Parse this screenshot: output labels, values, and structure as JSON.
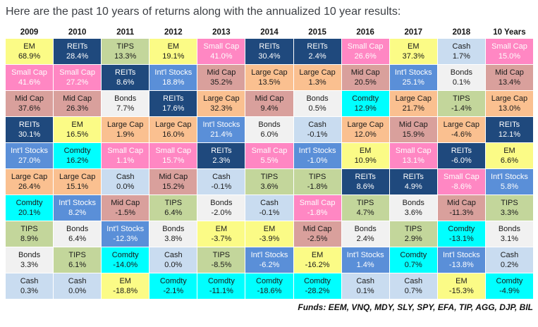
{
  "title": "Here are the past 10 years of returns along with the annualized 10 year results:",
  "footer_note": "Funds: EEM, VNQ, MDY, SLY, SPY, EFA, TIP, AGG, DJP, BIL",
  "asset_classes": {
    "EM": {
      "bg": "#FBFB86",
      "fg": "#1b1b1b"
    },
    "Small Cap": {
      "bg": "#FF87C3",
      "fg": "#fdfdfd"
    },
    "Mid Cap": {
      "bg": "#D9A09C",
      "fg": "#1b1b1b"
    },
    "REITs": {
      "bg": "#1F497D",
      "fg": "#fdfdfd"
    },
    "Int'l Stocks": {
      "bg": "#5A8FD8",
      "fg": "#fdfdfd"
    },
    "Large Cap": {
      "bg": "#FAC090",
      "fg": "#1b1b1b"
    },
    "Comdty": {
      "bg": "#00FFFF",
      "fg": "#1b1b1b"
    },
    "TIPS": {
      "bg": "#C3D69B",
      "fg": "#1b1b1b"
    },
    "Bonds": {
      "bg": "#F1F1F1",
      "fg": "#1b1b1b"
    },
    "Cash": {
      "bg": "#C9DCF0",
      "fg": "#1b1b1b"
    }
  },
  "chart_data": {
    "type": "table",
    "title": "Past 10 years of asset class returns with annualized 10 year results",
    "columns": [
      "2009",
      "2010",
      "2011",
      "2012",
      "2013",
      "2014",
      "2015",
      "2016",
      "2017",
      "2018",
      "10 Years"
    ],
    "grid": [
      [
        {
          "asset": "EM",
          "value": "68.9%"
        },
        {
          "asset": "Small Cap",
          "value": "41.6%"
        },
        {
          "asset": "Mid Cap",
          "value": "37.6%"
        },
        {
          "asset": "REITs",
          "value": "30.1%"
        },
        {
          "asset": "Int'l Stocks",
          "value": "27.0%"
        },
        {
          "asset": "Large Cap",
          "value": "26.4%"
        },
        {
          "asset": "Comdty",
          "value": "20.1%"
        },
        {
          "asset": "TIPS",
          "value": "8.9%"
        },
        {
          "asset": "Bonds",
          "value": "3.3%"
        },
        {
          "asset": "Cash",
          "value": "0.3%"
        }
      ],
      [
        {
          "asset": "REITs",
          "value": "28.4%"
        },
        {
          "asset": "Small Cap",
          "value": "27.2%"
        },
        {
          "asset": "Mid Cap",
          "value": "26.3%"
        },
        {
          "asset": "EM",
          "value": "16.5%"
        },
        {
          "asset": "Comdty",
          "value": "16.2%"
        },
        {
          "asset": "Large Cap",
          "value": "15.1%"
        },
        {
          "asset": "Int'l Stocks",
          "value": "8.2%"
        },
        {
          "asset": "Bonds",
          "value": "6.4%"
        },
        {
          "asset": "TIPS",
          "value": "6.1%"
        },
        {
          "asset": "Cash",
          "value": "0.0%"
        }
      ],
      [
        {
          "asset": "TIPS",
          "value": "13.3%"
        },
        {
          "asset": "REITs",
          "value": "8.6%"
        },
        {
          "asset": "Bonds",
          "value": "7.7%"
        },
        {
          "asset": "Large Cap",
          "value": "1.9%"
        },
        {
          "asset": "Small Cap",
          "value": "1.1%"
        },
        {
          "asset": "Cash",
          "value": "0.0%"
        },
        {
          "asset": "Mid Cap",
          "value": "-1.5%"
        },
        {
          "asset": "Int'l Stocks",
          "value": "-12.3%"
        },
        {
          "asset": "Comdty",
          "value": "-14.0%"
        },
        {
          "asset": "EM",
          "value": "-18.8%"
        }
      ],
      [
        {
          "asset": "EM",
          "value": "19.1%"
        },
        {
          "asset": "Int'l Stocks",
          "value": "18.8%"
        },
        {
          "asset": "REITs",
          "value": "17.6%"
        },
        {
          "asset": "Large Cap",
          "value": "16.0%"
        },
        {
          "asset": "Small Cap",
          "value": "15.7%"
        },
        {
          "asset": "Mid Cap",
          "value": "15.2%"
        },
        {
          "asset": "TIPS",
          "value": "6.4%"
        },
        {
          "asset": "Bonds",
          "value": "3.8%"
        },
        {
          "asset": "Cash",
          "value": "0.0%"
        },
        {
          "asset": "Comdty",
          "value": "-2.1%"
        }
      ],
      [
        {
          "asset": "Small Cap",
          "value": "41.0%"
        },
        {
          "asset": "Mid Cap",
          "value": "35.2%"
        },
        {
          "asset": "Large Cap",
          "value": "32.3%"
        },
        {
          "asset": "Int'l Stocks",
          "value": "21.4%"
        },
        {
          "asset": "REITs",
          "value": "2.3%"
        },
        {
          "asset": "Cash",
          "value": "-0.1%"
        },
        {
          "asset": "Bonds",
          "value": "-2.0%"
        },
        {
          "asset": "EM",
          "value": "-3.7%"
        },
        {
          "asset": "TIPS",
          "value": "-8.5%"
        },
        {
          "asset": "Comdty",
          "value": "-11.1%"
        }
      ],
      [
        {
          "asset": "REITs",
          "value": "30.4%"
        },
        {
          "asset": "Large Cap",
          "value": "13.5%"
        },
        {
          "asset": "Mid Cap",
          "value": "9.4%"
        },
        {
          "asset": "Bonds",
          "value": "6.0%"
        },
        {
          "asset": "Small Cap",
          "value": "5.5%"
        },
        {
          "asset": "TIPS",
          "value": "3.6%"
        },
        {
          "asset": "Cash",
          "value": "-0.1%"
        },
        {
          "asset": "EM",
          "value": "-3.9%"
        },
        {
          "asset": "Int'l Stocks",
          "value": "-6.2%"
        },
        {
          "asset": "Comdty",
          "value": "-18.6%"
        }
      ],
      [
        {
          "asset": "REITs",
          "value": "2.4%"
        },
        {
          "asset": "Large Cap",
          "value": "1.3%"
        },
        {
          "asset": "Bonds",
          "value": "0.5%"
        },
        {
          "asset": "Cash",
          "value": "-0.1%"
        },
        {
          "asset": "Int'l Stocks",
          "value": "-1.0%"
        },
        {
          "asset": "TIPS",
          "value": "-1.8%"
        },
        {
          "asset": "Small Cap",
          "value": "-1.8%"
        },
        {
          "asset": "Mid Cap",
          "value": "-2.5%"
        },
        {
          "asset": "EM",
          "value": "-16.2%"
        },
        {
          "asset": "Comdty",
          "value": "-28.2%"
        }
      ],
      [
        {
          "asset": "Small Cap",
          "value": "26.6%"
        },
        {
          "asset": "Mid Cap",
          "value": "20.5%"
        },
        {
          "asset": "Comdty",
          "value": "12.9%"
        },
        {
          "asset": "Large Cap",
          "value": "12.0%"
        },
        {
          "asset": "EM",
          "value": "10.9%"
        },
        {
          "asset": "REITs",
          "value": "8.6%"
        },
        {
          "asset": "TIPS",
          "value": "4.7%"
        },
        {
          "asset": "Bonds",
          "value": "2.4%"
        },
        {
          "asset": "Int'l Stocks",
          "value": "1.4%"
        },
        {
          "asset": "Cash",
          "value": "0.1%"
        }
      ],
      [
        {
          "asset": "EM",
          "value": "37.3%"
        },
        {
          "asset": "Int'l Stocks",
          "value": "25.1%"
        },
        {
          "asset": "Large Cap",
          "value": "21.7%"
        },
        {
          "asset": "Mid Cap",
          "value": "15.9%"
        },
        {
          "asset": "Small Cap",
          "value": "13.1%"
        },
        {
          "asset": "REITs",
          "value": "4.9%"
        },
        {
          "asset": "Bonds",
          "value": "3.6%"
        },
        {
          "asset": "TIPS",
          "value": "2.9%"
        },
        {
          "asset": "Comdty",
          "value": "0.7%"
        },
        {
          "asset": "Cash",
          "value": "0.7%"
        }
      ],
      [
        {
          "asset": "Cash",
          "value": "1.7%"
        },
        {
          "asset": "Bonds",
          "value": "0.1%"
        },
        {
          "asset": "TIPS",
          "value": "-1.4%"
        },
        {
          "asset": "Large Cap",
          "value": "-4.6%"
        },
        {
          "asset": "REITs",
          "value": "-6.0%"
        },
        {
          "asset": "Small Cap",
          "value": "-8.6%"
        },
        {
          "asset": "Mid Cap",
          "value": "-11.3%"
        },
        {
          "asset": "Comdty",
          "value": "-13.1%"
        },
        {
          "asset": "Int'l Stocks",
          "value": "-13.8%"
        },
        {
          "asset": "EM",
          "value": "-15.3%"
        }
      ],
      [
        {
          "asset": "Small Cap",
          "value": "15.0%"
        },
        {
          "asset": "Mid Cap",
          "value": "13.4%"
        },
        {
          "asset": "Large Cap",
          "value": "13.0%"
        },
        {
          "asset": "REITs",
          "value": "12.1%"
        },
        {
          "asset": "EM",
          "value": "6.6%"
        },
        {
          "asset": "Int'l Stocks",
          "value": "5.8%"
        },
        {
          "asset": "TIPS",
          "value": "3.3%"
        },
        {
          "asset": "Bonds",
          "value": "3.1%"
        },
        {
          "asset": "Cash",
          "value": "0.2%"
        },
        {
          "asset": "Comdty",
          "value": "-4.9%"
        }
      ]
    ]
  }
}
